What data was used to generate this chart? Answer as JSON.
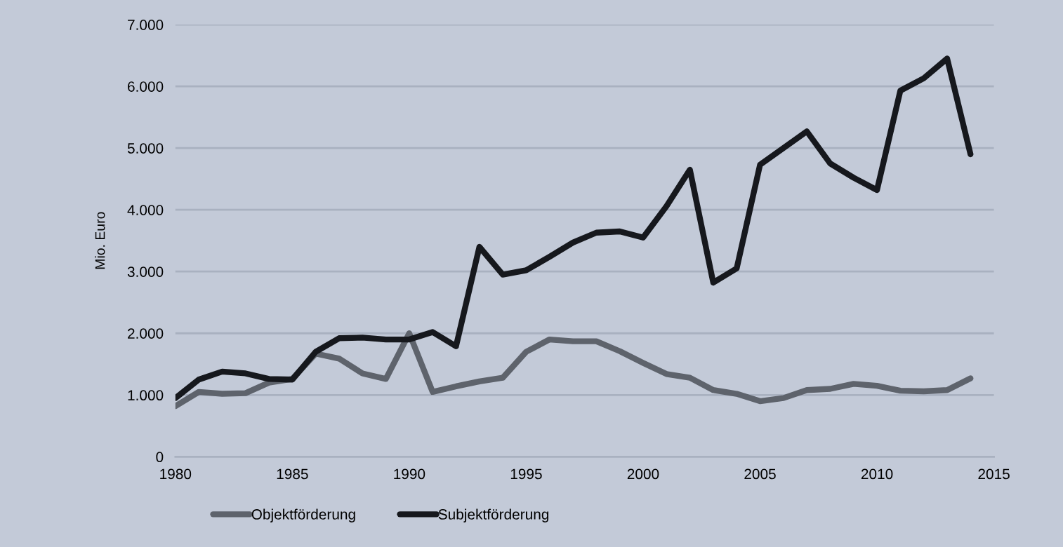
{
  "chart_data": {
    "type": "line",
    "ylabel": "Mio. Euro",
    "x": [
      1980,
      1981,
      1982,
      1983,
      1984,
      1985,
      1986,
      1987,
      1988,
      1989,
      1990,
      1991,
      1992,
      1993,
      1994,
      1995,
      1996,
      1997,
      1998,
      1999,
      2000,
      2001,
      2002,
      2003,
      2004,
      2005,
      2006,
      2007,
      2008,
      2009,
      2010,
      2011,
      2012,
      2013,
      2014
    ],
    "series": [
      {
        "name": "Objektförderung",
        "color": "#5e636c",
        "values": [
          820,
          1050,
          1020,
          1030,
          1200,
          1260,
          1670,
          1590,
          1350,
          1260,
          2000,
          1050,
          1140,
          1220,
          1280,
          1700,
          1900,
          1870,
          1870,
          1710,
          1520,
          1340,
          1280,
          1080,
          1020,
          900,
          950,
          1080,
          1100,
          1180,
          1150,
          1070,
          1060,
          1080,
          1270
        ]
      },
      {
        "name": "Subjektförderung",
        "color": "#16181d",
        "values": [
          950,
          1250,
          1380,
          1350,
          1260,
          1250,
          1700,
          1920,
          1930,
          1900,
          1900,
          2020,
          1790,
          3400,
          2950,
          3020,
          3240,
          3470,
          3630,
          3650,
          3550,
          4060,
          4650,
          2820,
          3050,
          4730,
          5000,
          5270,
          4750,
          4520,
          4320,
          5930,
          6130,
          6450,
          4900
        ]
      }
    ],
    "xlim": [
      1980,
      2015
    ],
    "xticks": [
      1980,
      1985,
      1990,
      1995,
      2000,
      2005,
      2010,
      2015
    ],
    "ylim": [
      0,
      7000
    ],
    "yticks": [
      0,
      {
        "value": 1000,
        "label": "1.000"
      },
      {
        "value": 2000,
        "label": "2.000"
      },
      {
        "value": 3000,
        "label": "3.000"
      },
      {
        "value": 4000,
        "label": "4.000"
      },
      {
        "value": 5000,
        "label": "5.000"
      },
      {
        "value": 6000,
        "label": "6.000"
      },
      {
        "value": 7000,
        "label": "7.000"
      }
    ],
    "grid": "y",
    "legend": "bottom",
    "marker": "none",
    "line_style": "solid"
  }
}
